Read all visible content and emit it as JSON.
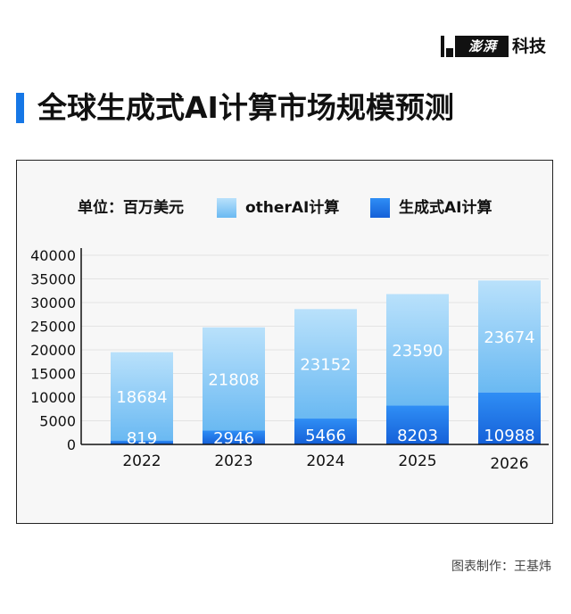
{
  "brand": {
    "logo_text": "澎湃",
    "word": "科技"
  },
  "title": "全球生成式AI计算市场规模预测",
  "credit": "图表制作：王基炜",
  "colors": {
    "accent": "#1677e6",
    "other_ai": "#86c8f6",
    "generative_ai": "#1f7ef0"
  },
  "chart_data": {
    "type": "bar",
    "stacked": true,
    "unit_label": "单位：百万美元",
    "categories": [
      "2022",
      "2023",
      "2024",
      "2025",
      "2026"
    ],
    "series": [
      {
        "name": "生成式AI计算",
        "values": [
          819,
          2946,
          5466,
          8203,
          10988
        ]
      },
      {
        "name": "otherAI计算",
        "values": [
          18684,
          21808,
          23152,
          23590,
          23674
        ]
      }
    ],
    "ylim": [
      0,
      40000
    ],
    "yticks": [
      "0",
      "5000",
      "10000",
      "15000",
      "20000",
      "25000",
      "30000",
      "35000",
      "40000"
    ],
    "legend_position": "top",
    "grid": true
  }
}
